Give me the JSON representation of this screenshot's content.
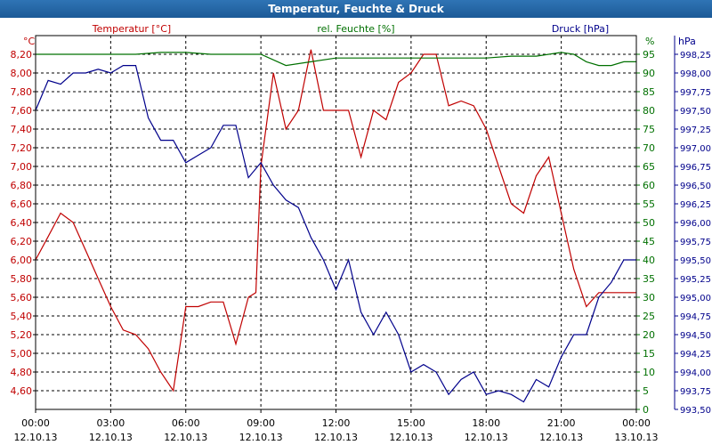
{
  "window": {
    "title": "Temperatur, Feuchte & Druck"
  },
  "colors": {
    "temperature": "#c00000",
    "humidity": "#007000",
    "pressure": "#00008b",
    "grid": "#000000"
  },
  "chart_data": {
    "type": "line",
    "title": "Temperatur, Feuchte & Druck",
    "grid": true,
    "x_labels": [
      {
        "time": "00:00",
        "date": "12.10.13"
      },
      {
        "time": "03:00",
        "date": "12.10.13"
      },
      {
        "time": "06:00",
        "date": "12.10.13"
      },
      {
        "time": "09:00",
        "date": "12.10.13"
      },
      {
        "time": "12:00",
        "date": "12.10.13"
      },
      {
        "time": "15:00",
        "date": "12.10.13"
      },
      {
        "time": "18:00",
        "date": "12.10.13"
      },
      {
        "time": "21:00",
        "date": "12.10.13"
      },
      {
        "time": "00:00",
        "date": "13.10.13"
      }
    ],
    "xlim": [
      0,
      24
    ],
    "axes": {
      "temperature": {
        "label": "Temperatur [°C]",
        "unit": "°C",
        "ylim": [
          4.4,
          8.4
        ],
        "ticks": [
          "4,60",
          "4,80",
          "5,00",
          "5,20",
          "5,40",
          "5,60",
          "5,80",
          "6,00",
          "6,20",
          "6,40",
          "6,60",
          "6,80",
          "7,00",
          "7,20",
          "7,40",
          "7,60",
          "7,80",
          "8,00",
          "8,20"
        ],
        "tick_values": [
          4.6,
          4.8,
          5.0,
          5.2,
          5.4,
          5.6,
          5.8,
          6.0,
          6.2,
          6.4,
          6.6,
          6.8,
          7.0,
          7.2,
          7.4,
          7.6,
          7.8,
          8.0,
          8.2
        ]
      },
      "humidity": {
        "label": "rel. Feuchte [%]",
        "unit": "%",
        "ylim": [
          0,
          100
        ],
        "ticks": [
          "0",
          "5",
          "10",
          "15",
          "20",
          "25",
          "30",
          "35",
          "40",
          "45",
          "50",
          "55",
          "60",
          "65",
          "70",
          "75",
          "80",
          "85",
          "90",
          "95"
        ],
        "tick_values": [
          0,
          5,
          10,
          15,
          20,
          25,
          30,
          35,
          40,
          45,
          50,
          55,
          60,
          65,
          70,
          75,
          80,
          85,
          90,
          95
        ]
      },
      "pressure": {
        "label": "Druck [hPa]",
        "unit": "hPa",
        "ylim": [
          993.5,
          998.5
        ],
        "ticks": [
          "993,50",
          "993,75",
          "994,00",
          "994,25",
          "994,50",
          "994,75",
          "995,00",
          "995,25",
          "995,50",
          "995,75",
          "996,00",
          "996,25",
          "996,50",
          "996,75",
          "997,00",
          "997,25",
          "997,50",
          "997,75",
          "998,00",
          "998,25"
        ],
        "tick_values": [
          993.5,
          993.75,
          994.0,
          994.25,
          994.5,
          994.75,
          995.0,
          995.25,
          995.5,
          995.75,
          996.0,
          996.25,
          996.5,
          996.75,
          997.0,
          997.25,
          997.5,
          997.75,
          998.0,
          998.25
        ]
      }
    },
    "series": [
      {
        "name": "Temperatur [°C]",
        "axis": "temperature",
        "x": [
          0,
          0.5,
          1.0,
          1.5,
          2.0,
          2.5,
          3.0,
          3.5,
          4.0,
          4.5,
          5.0,
          5.5,
          6.0,
          6.5,
          7.0,
          7.5,
          8.0,
          8.5,
          8.8,
          9.0,
          9.5,
          10.0,
          10.5,
          11.0,
          11.5,
          12.0,
          12.5,
          13.0,
          13.5,
          14.0,
          14.5,
          15.0,
          15.5,
          16.0,
          16.5,
          17.0,
          17.5,
          18.0,
          18.5,
          19.0,
          19.5,
          20.0,
          20.5,
          21.0,
          21.5,
          22.0,
          22.5,
          23.0,
          23.5,
          24.0
        ],
        "y": [
          6.0,
          6.25,
          6.5,
          6.4,
          6.1,
          5.8,
          5.5,
          5.25,
          5.2,
          5.05,
          4.8,
          4.6,
          5.5,
          5.5,
          5.55,
          5.55,
          5.1,
          5.6,
          5.65,
          7.0,
          8.0,
          7.4,
          7.6,
          8.25,
          7.6,
          7.6,
          7.6,
          7.1,
          7.6,
          7.5,
          7.9,
          8.0,
          8.2,
          8.2,
          7.65,
          7.7,
          7.65,
          7.4,
          7.0,
          6.6,
          6.5,
          6.9,
          7.1,
          6.5,
          5.9,
          5.5,
          5.65,
          5.65,
          5.65,
          5.65
        ]
      },
      {
        "name": "rel. Feuchte [%]",
        "axis": "humidity",
        "x": [
          0,
          1,
          2,
          3,
          4,
          5,
          6,
          7,
          8,
          9,
          10,
          11,
          12,
          13,
          14,
          15,
          16,
          17,
          18,
          19,
          20,
          21,
          21.5,
          22,
          22.5,
          23,
          23.5,
          24
        ],
        "y": [
          95,
          95,
          95,
          95,
          95,
          95.5,
          95.5,
          95,
          95,
          95,
          92,
          93,
          94,
          94,
          94,
          94,
          94,
          94,
          94,
          94.5,
          94.5,
          95.5,
          95,
          93,
          92,
          92,
          93,
          93
        ]
      },
      {
        "name": "Druck [hPa]",
        "axis": "pressure",
        "x": [
          0,
          0.5,
          1.0,
          1.5,
          2.0,
          2.5,
          3.0,
          3.5,
          4.0,
          4.5,
          5.0,
          5.5,
          6.0,
          6.5,
          7.0,
          7.5,
          8.0,
          8.5,
          9.0,
          9.5,
          10.0,
          10.5,
          11.0,
          11.5,
          12.0,
          12.5,
          13.0,
          13.5,
          14.0,
          14.5,
          15.0,
          15.5,
          16.0,
          16.5,
          17.0,
          17.5,
          18.0,
          18.5,
          19.0,
          19.5,
          20.0,
          20.5,
          21.0,
          21.5,
          22.0,
          22.5,
          23.0,
          23.5,
          24.0
        ],
        "y": [
          997.5,
          997.9,
          997.85,
          998.0,
          998.0,
          998.05,
          998.0,
          998.1,
          998.1,
          997.4,
          997.1,
          997.1,
          996.8,
          996.9,
          997.0,
          997.3,
          997.3,
          996.6,
          996.8,
          996.5,
          996.3,
          996.2,
          995.8,
          995.5,
          995.1,
          995.5,
          994.8,
          994.5,
          994.8,
          994.5,
          994.0,
          994.1,
          994.0,
          993.7,
          993.9,
          994.0,
          993.7,
          993.75,
          993.7,
          993.6,
          993.9,
          993.8,
          994.2,
          994.5,
          994.5,
          995.0,
          995.2,
          995.5,
          995.5
        ]
      }
    ]
  }
}
